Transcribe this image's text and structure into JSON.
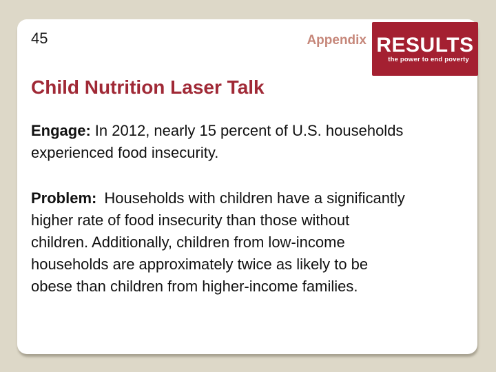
{
  "page": {
    "background_color": "#ddd8c8",
    "slide_background": "#ffffff"
  },
  "slide": {
    "page_number": "45",
    "header_label": "Appendix",
    "header_label_color": "#c6877a",
    "logo": {
      "wordmark": "RESULTS",
      "tagline": "the power to end poverty",
      "background_color": "#a42031",
      "text_color": "#ffffff"
    },
    "title": "Child Nutrition Laser Talk",
    "title_color": "#a02936",
    "paragraphs": [
      {
        "label": "Engage:",
        "text": "In 2012, nearly 15 percent of U.S. households\nexperienced food insecurity."
      },
      {
        "label": "Problem:",
        "text": "Households with children have a significantly\nhigher rate of food insecurity than those without\nchildren.  Additionally, children from low-income\nhouseholds are approximately twice as likely to be\nobese than children from higher-income families."
      }
    ]
  }
}
